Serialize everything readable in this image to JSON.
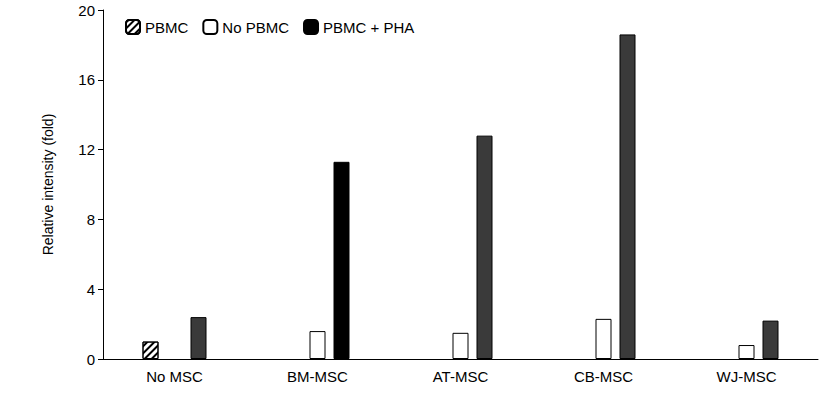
{
  "chart_data": {
    "type": "bar",
    "y_label": "Relative intensity (fold)",
    "categories": [
      "No MSC",
      "BM-MSC",
      "AT-MSC",
      "CB-MSC",
      "WJ-MSC"
    ],
    "series": [
      {
        "name": "PBMC",
        "color": "#ffffff",
        "marker": "hatch",
        "values": [
          1.0,
          null,
          null,
          null,
          null
        ]
      },
      {
        "name": "No PBMC",
        "color": "#ffffff",
        "values": [
          null,
          1.6,
          1.5,
          2.3,
          0.8
        ]
      },
      {
        "name": "PBMC + PHA",
        "colors": [
          "#3a3a3a",
          "#000000",
          "#3a3a3a",
          "#3a3a3a",
          "#3a3a3a"
        ],
        "values": [
          2.4,
          11.3,
          12.8,
          18.6,
          2.2
        ]
      }
    ],
    "ylim": [
      0,
      20
    ],
    "yticks": [
      0,
      4,
      8,
      12,
      16,
      20
    ],
    "grid": false,
    "legend": "upper left"
  }
}
